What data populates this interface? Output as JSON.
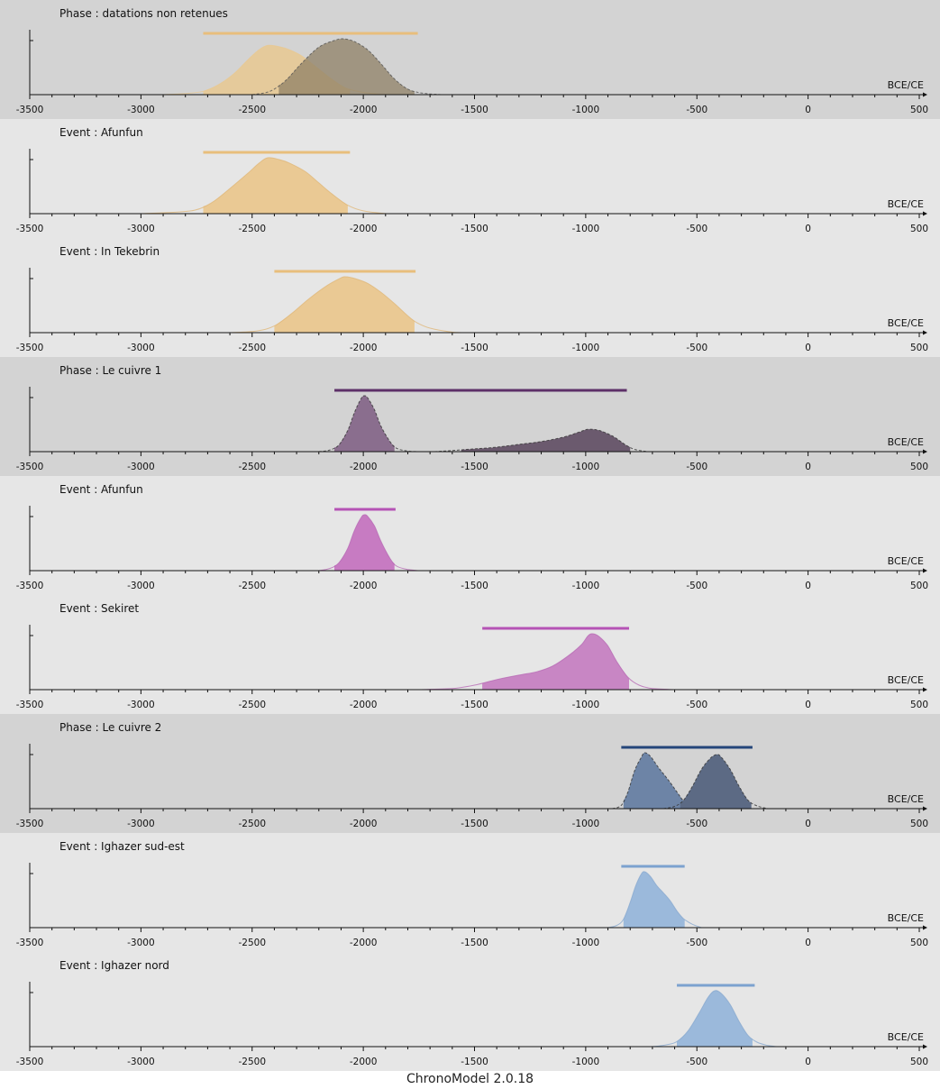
{
  "footer": "ChronoModel 2.0.18",
  "chart_data": {
    "type": "area",
    "xlim": [
      -3500,
      500
    ],
    "ticks": [
      -3500,
      -3000,
      -2500,
      -2000,
      -1500,
      -1000,
      -500,
      0,
      500
    ],
    "panels": [
      {
        "kind": "phase",
        "title": "Phase : datations non retenues",
        "unit": "BCE/CE",
        "bg": "#d3d3d3",
        "hpd": {
          "start": -2720,
          "end": -1755,
          "color": "#e8be7c"
        },
        "curves": [
          {
            "color": "#e8c891",
            "fill_opacity": 0.85,
            "stroke": "#e8c891",
            "dashed": false,
            "range": [
              -2720,
              -2060
            ],
            "points": [
              [
                -2900,
                0
              ],
              [
                -2800,
                2
              ],
              [
                -2720,
                6
              ],
              [
                -2650,
                18
              ],
              [
                -2580,
                38
              ],
              [
                -2520,
                62
              ],
              [
                -2470,
                80
              ],
              [
                -2430,
                88
              ],
              [
                -2380,
                86
              ],
              [
                -2330,
                80
              ],
              [
                -2280,
                70
              ],
              [
                -2220,
                52
              ],
              [
                -2150,
                30
              ],
              [
                -2080,
                12
              ],
              [
                -2000,
                4
              ],
              [
                -1900,
                0
              ]
            ]
          },
          {
            "color": "#8f8066",
            "fill_opacity": 0.75,
            "stroke": "#555",
            "dashed": true,
            "range": [
              -2380,
              -1770
            ],
            "points": [
              [
                -2500,
                0
              ],
              [
                -2420,
                6
              ],
              [
                -2350,
                25
              ],
              [
                -2280,
                55
              ],
              [
                -2200,
                85
              ],
              [
                -2130,
                97
              ],
              [
                -2090,
                100
              ],
              [
                -2040,
                95
              ],
              [
                -1980,
                80
              ],
              [
                -1920,
                55
              ],
              [
                -1860,
                28
              ],
              [
                -1800,
                10
              ],
              [
                -1740,
                3
              ],
              [
                -1650,
                0
              ]
            ]
          }
        ]
      },
      {
        "kind": "event",
        "title": "Event : Afunfun",
        "unit": "BCE/CE",
        "bg": "#e6e6e6",
        "hpd": {
          "start": -2720,
          "end": -2060,
          "color": "#e8be7c"
        },
        "curves": [
          {
            "color": "#eac994",
            "fill_opacity": 1,
            "stroke": "#e0b87a",
            "dashed": false,
            "range": [
              -2720,
              -2070
            ],
            "points": [
              [
                -3000,
                0
              ],
              [
                -2880,
                2
              ],
              [
                -2760,
                6
              ],
              [
                -2680,
                20
              ],
              [
                -2600,
                45
              ],
              [
                -2520,
                72
              ],
              [
                -2470,
                90
              ],
              [
                -2430,
                100
              ],
              [
                -2380,
                97
              ],
              [
                -2330,
                90
              ],
              [
                -2260,
                75
              ],
              [
                -2200,
                55
              ],
              [
                -2140,
                35
              ],
              [
                -2070,
                15
              ],
              [
                -2000,
                5
              ],
              [
                -1900,
                0
              ]
            ]
          }
        ]
      },
      {
        "kind": "event",
        "title": "Event : In Tekebrin",
        "unit": "BCE/CE",
        "bg": "#e6e6e6",
        "hpd": {
          "start": -2400,
          "end": -1765,
          "color": "#e8be7c"
        },
        "curves": [
          {
            "color": "#eac994",
            "fill_opacity": 1,
            "stroke": "#e0b87a",
            "dashed": false,
            "range": [
              -2400,
              -1770
            ],
            "points": [
              [
                -2600,
                0
              ],
              [
                -2480,
                3
              ],
              [
                -2400,
                12
              ],
              [
                -2320,
                35
              ],
              [
                -2240,
                62
              ],
              [
                -2160,
                85
              ],
              [
                -2100,
                98
              ],
              [
                -2080,
                100
              ],
              [
                -2040,
                97
              ],
              [
                -1980,
                88
              ],
              [
                -1920,
                72
              ],
              [
                -1860,
                52
              ],
              [
                -1800,
                30
              ],
              [
                -1760,
                18
              ],
              [
                -1700,
                8
              ],
              [
                -1600,
                1
              ],
              [
                -1550,
                0
              ]
            ]
          }
        ]
      },
      {
        "kind": "phase",
        "title": "Phase : Le cuivre 1",
        "unit": "BCE/CE",
        "bg": "#d3d3d3",
        "hpd": {
          "start": -2130,
          "end": -815,
          "color": "#5e3068"
        },
        "curves": [
          {
            "color": "#8a6e8e",
            "fill_opacity": 1,
            "stroke": "#333",
            "dashed": true,
            "range": [
              -2130,
              -1860
            ],
            "points": [
              [
                -2200,
                0
              ],
              [
                -2150,
                3
              ],
              [
                -2110,
                12
              ],
              [
                -2070,
                38
              ],
              [
                -2040,
                70
              ],
              [
                -2010,
                95
              ],
              [
                -1995,
                100
              ],
              [
                -1980,
                96
              ],
              [
                -1950,
                75
              ],
              [
                -1920,
                45
              ],
              [
                -1880,
                18
              ],
              [
                -1850,
                6
              ],
              [
                -1800,
                1
              ],
              [
                -1750,
                0
              ]
            ]
          },
          {
            "color": "#6b5a6e",
            "fill_opacity": 1,
            "stroke": "#333",
            "dashed": true,
            "range": [
              -1560,
              -800
            ],
            "points": [
              [
                -1680,
                0
              ],
              [
                -1600,
                2
              ],
              [
                -1500,
                5
              ],
              [
                -1400,
                8
              ],
              [
                -1300,
                13
              ],
              [
                -1200,
                18
              ],
              [
                -1100,
                26
              ],
              [
                -1030,
                35
              ],
              [
                -990,
                40
              ],
              [
                -940,
                38
              ],
              [
                -880,
                28
              ],
              [
                -820,
                12
              ],
              [
                -780,
                4
              ],
              [
                -720,
                0
              ]
            ]
          }
        ]
      },
      {
        "kind": "event",
        "title": "Event : Afunfun",
        "unit": "BCE/CE",
        "bg": "#e6e6e6",
        "hpd": {
          "start": -2130,
          "end": -1855,
          "color": "#b553b5"
        },
        "curves": [
          {
            "color": "#c77bc2",
            "fill_opacity": 1,
            "stroke": "#b86bb5",
            "dashed": false,
            "range": [
              -2130,
              -1860
            ],
            "points": [
              [
                -2200,
                0
              ],
              [
                -2150,
                4
              ],
              [
                -2110,
                14
              ],
              [
                -2070,
                40
              ],
              [
                -2040,
                72
              ],
              [
                -2010,
                95
              ],
              [
                -1995,
                100
              ],
              [
                -1980,
                97
              ],
              [
                -1950,
                80
              ],
              [
                -1920,
                52
              ],
              [
                -1880,
                22
              ],
              [
                -1850,
                8
              ],
              [
                -1800,
                2
              ],
              [
                -1750,
                0
              ]
            ]
          }
        ]
      },
      {
        "kind": "event",
        "title": "Event : Sekiret",
        "unit": "BCE/CE",
        "bg": "#e6e6e6",
        "hpd": {
          "start": -1465,
          "end": -805,
          "color": "#b553b5"
        },
        "curves": [
          {
            "color": "#c886c4",
            "fill_opacity": 1,
            "stroke": "#b86bb5",
            "dashed": false,
            "range": [
              -1465,
              -805
            ],
            "points": [
              [
                -1750,
                0
              ],
              [
                -1600,
                2
              ],
              [
                -1500,
                8
              ],
              [
                -1400,
                18
              ],
              [
                -1300,
                26
              ],
              [
                -1220,
                32
              ],
              [
                -1150,
                42
              ],
              [
                -1080,
                60
              ],
              [
                -1020,
                80
              ],
              [
                -990,
                96
              ],
              [
                -970,
                100
              ],
              [
                -940,
                95
              ],
              [
                -900,
                78
              ],
              [
                -860,
                50
              ],
              [
                -810,
                22
              ],
              [
                -760,
                8
              ],
              [
                -700,
                2
              ],
              [
                -600,
                0
              ]
            ]
          }
        ]
      },
      {
        "kind": "phase",
        "title": "Phase : Le cuivre 2",
        "unit": "BCE/CE",
        "bg": "#d3d3d3",
        "hpd": {
          "start": -840,
          "end": -250,
          "color": "#24467a"
        },
        "curves": [
          {
            "color": "#6d84a6",
            "fill_opacity": 1,
            "stroke": "#333",
            "dashed": true,
            "range": [
              -830,
              -560
            ],
            "points": [
              [
                -880,
                0
              ],
              [
                -840,
                6
              ],
              [
                -810,
                30
              ],
              [
                -780,
                68
              ],
              [
                -750,
                92
              ],
              [
                -735,
                100
              ],
              [
                -710,
                94
              ],
              [
                -670,
                72
              ],
              [
                -630,
                52
              ],
              [
                -590,
                30
              ],
              [
                -560,
                14
              ],
              [
                -520,
                4
              ],
              [
                -480,
                0
              ]
            ]
          },
          {
            "color": "#5c6a84",
            "fill_opacity": 1,
            "stroke": "#333",
            "dashed": true,
            "range": [
              -575,
              -255
            ],
            "points": [
              [
                -650,
                0
              ],
              [
                -600,
                4
              ],
              [
                -560,
                15
              ],
              [
                -520,
                40
              ],
              [
                -480,
                70
              ],
              [
                -440,
                90
              ],
              [
                -410,
                97
              ],
              [
                -390,
                92
              ],
              [
                -350,
                70
              ],
              [
                -310,
                40
              ],
              [
                -270,
                15
              ],
              [
                -230,
                5
              ],
              [
                -180,
                0
              ]
            ]
          }
        ]
      },
      {
        "kind": "event",
        "title": "Event : Ighazer sud-est",
        "unit": "BCE/CE",
        "bg": "#e6e6e6",
        "hpd": {
          "start": -840,
          "end": -555,
          "color": "#7ca2cf"
        },
        "curves": [
          {
            "color": "#9bb9db",
            "fill_opacity": 1,
            "stroke": "#8aaad0",
            "dashed": false,
            "range": [
              -830,
              -555
            ],
            "points": [
              [
                -900,
                0
              ],
              [
                -860,
                4
              ],
              [
                -830,
                15
              ],
              [
                -800,
                45
              ],
              [
                -775,
                75
              ],
              [
                -750,
                96
              ],
              [
                -735,
                100
              ],
              [
                -710,
                92
              ],
              [
                -680,
                75
              ],
              [
                -650,
                62
              ],
              [
                -620,
                48
              ],
              [
                -590,
                30
              ],
              [
                -560,
                16
              ],
              [
                -520,
                6
              ],
              [
                -480,
                0
              ]
            ]
          }
        ]
      },
      {
        "kind": "event",
        "title": "Event : Ighazer nord",
        "unit": "BCE/CE",
        "bg": "#e6e6e6",
        "hpd": {
          "start": -590,
          "end": -240,
          "color": "#7ca2cf"
        },
        "curves": [
          {
            "color": "#9bb9db",
            "fill_opacity": 1,
            "stroke": "#8aaad0",
            "dashed": false,
            "range": [
              -590,
              -250
            ],
            "points": [
              [
                -700,
                0
              ],
              [
                -640,
                3
              ],
              [
                -590,
                9
              ],
              [
                -540,
                28
              ],
              [
                -490,
                60
              ],
              [
                -450,
                88
              ],
              [
                -420,
                100
              ],
              [
                -390,
                95
              ],
              [
                -350,
                75
              ],
              [
                -310,
                45
              ],
              [
                -270,
                20
              ],
              [
                -230,
                8
              ],
              [
                -180,
                2
              ],
              [
                -140,
                0
              ]
            ]
          }
        ]
      }
    ]
  }
}
